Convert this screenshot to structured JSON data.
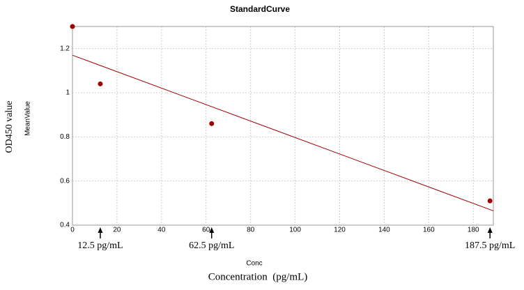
{
  "chart_data": {
    "type": "scatter",
    "title": "StandardCurve",
    "x_label": "Conc",
    "y_label": "MeanValue",
    "outer_y_label": "OD450 value",
    "outer_x_label": "Concentration  (pg/mL)",
    "xlim": [
      0,
      189
    ],
    "ylim": [
      0.4,
      1.3
    ],
    "xticks": [
      0,
      20,
      40,
      60,
      80,
      100,
      120,
      140,
      160,
      180
    ],
    "yticks": [
      0.4,
      0.6,
      0.8,
      1,
      1.2
    ],
    "grid": true,
    "series": [
      {
        "mode": "markers",
        "color": "#a00000",
        "x": [
          0,
          12.5,
          62.5,
          187.5
        ],
        "values": [
          1.3,
          1.04,
          0.86,
          0.51
        ]
      },
      {
        "mode": "line",
        "color": "#a00000",
        "x": [
          0,
          189
        ],
        "values": [
          1.17,
          0.465
        ]
      }
    ],
    "annotations": [
      {
        "text": "12.5 pg/mL",
        "x": 12.5
      },
      {
        "text": "62.5 pg/mL",
        "x": 62.5
      },
      {
        "text": "187.5 pg/mL",
        "x": 187.5
      }
    ]
  }
}
